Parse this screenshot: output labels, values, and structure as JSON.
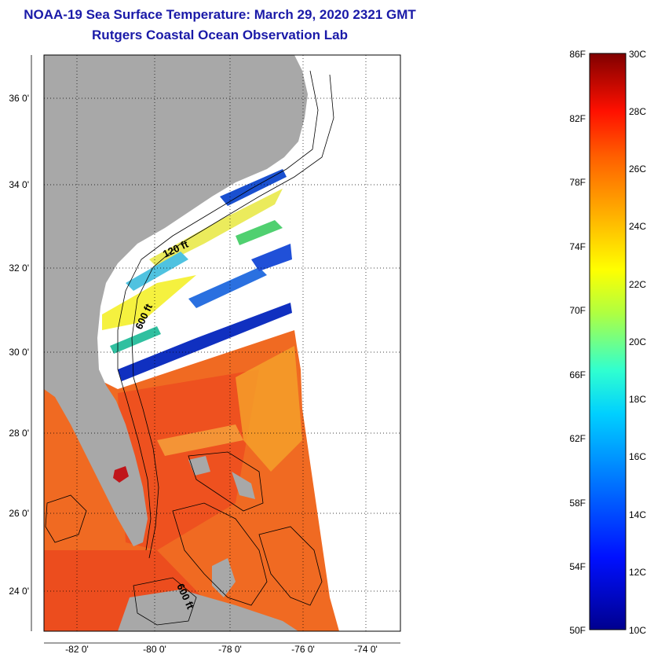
{
  "title": "NOAA-19 Sea Surface Temperature:  March 29, 2020 2321 GMT",
  "subtitle": "Rutgers Coastal Ocean Observation Lab",
  "lat_ticks": [
    "36 0'",
    "34 0'",
    "32 0'",
    "30 0'",
    "28 0'",
    "26 0'",
    "24 0'"
  ],
  "lon_ticks": [
    "-82 0'",
    "-80 0'",
    "-78 0'",
    "-76 0'",
    "-74 0'"
  ],
  "contour_labels": [
    "120 ft",
    "600 ft",
    "600 ft"
  ],
  "colorbar": {
    "f_labels": [
      "86F",
      "82F",
      "78F",
      "74F",
      "70F",
      "66F",
      "62F",
      "58F",
      "54F",
      "50F"
    ],
    "c_labels": [
      "30C",
      "28C",
      "26C",
      "24C",
      "22C",
      "20C",
      "18C",
      "16C",
      "14C",
      "12C",
      "10C"
    ]
  },
  "colors": {
    "land": "#a8a8a8",
    "title": "#1a1aa8",
    "sea_warm": "#f06a22",
    "sea_hot": "#e83a1a",
    "sea_mild": "#f5a22a"
  }
}
